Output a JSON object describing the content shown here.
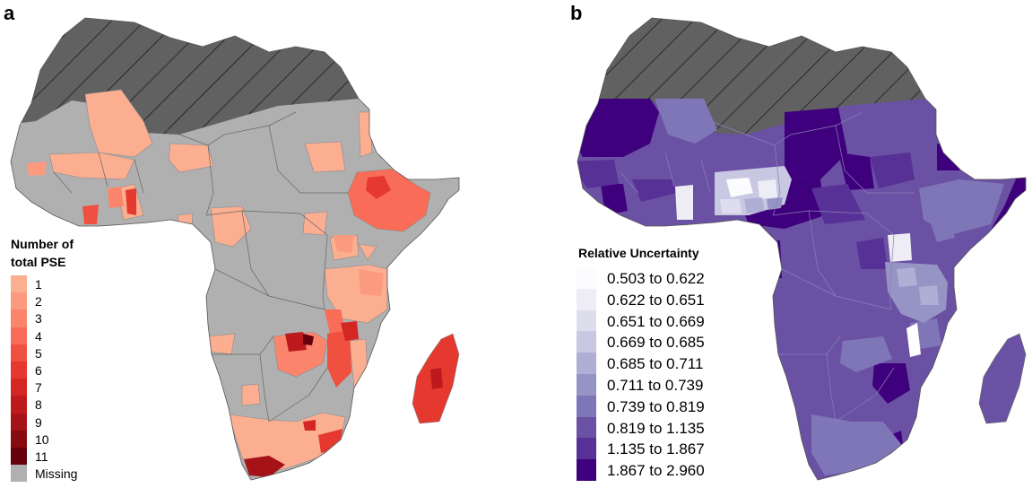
{
  "panel_a": {
    "label": "a",
    "legend_title_line1": "Number of",
    "legend_title_line2": "total PSE",
    "legend_items": [
      {
        "label": "1",
        "color": "#fcae91"
      },
      {
        "label": "2",
        "color": "#fc9a7f"
      },
      {
        "label": "3",
        "color": "#fb856c"
      },
      {
        "label": "4",
        "color": "#f86c58"
      },
      {
        "label": "5",
        "color": "#f0503f"
      },
      {
        "label": "6",
        "color": "#e5382f"
      },
      {
        "label": "7",
        "color": "#d42623"
      },
      {
        "label": "8",
        "color": "#be1a1d"
      },
      {
        "label": "9",
        "color": "#a51218"
      },
      {
        "label": "10",
        "color": "#880b11"
      },
      {
        "label": "11",
        "color": "#67000d"
      },
      {
        "label": "Missing",
        "color": "#b0b0b0"
      }
    ],
    "colors": {
      "missing": "#b0b0b0",
      "hatched_region": "#616161",
      "border": "#555555"
    }
  },
  "panel_b": {
    "label": "b",
    "legend_title": "Relative Uncertainty",
    "legend_items": [
      {
        "label": "0.503 to 0.622",
        "color": "#fcfbfd"
      },
      {
        "label": "0.622 to 0.651",
        "color": "#eeecf4"
      },
      {
        "label": "0.651 to 0.669",
        "color": "#dedded"
      },
      {
        "label": "0.669 to 0.685",
        "color": "#c8c8e2"
      },
      {
        "label": "0.685 to 0.711",
        "color": "#afaed4"
      },
      {
        "label": "0.711 to 0.739",
        "color": "#9694c5"
      },
      {
        "label": "0.739 to 0.819",
        "color": "#7f76b8"
      },
      {
        "label": "0.819 to 1.135",
        "color": "#6a51a3"
      },
      {
        "label": "1.135 to 1.867",
        "color": "#573196"
      },
      {
        "label": "1.867 to 2.960",
        "color": "#3f007d"
      }
    ],
    "colors": {
      "hatched_region": "#616161",
      "border": "#666666"
    }
  }
}
